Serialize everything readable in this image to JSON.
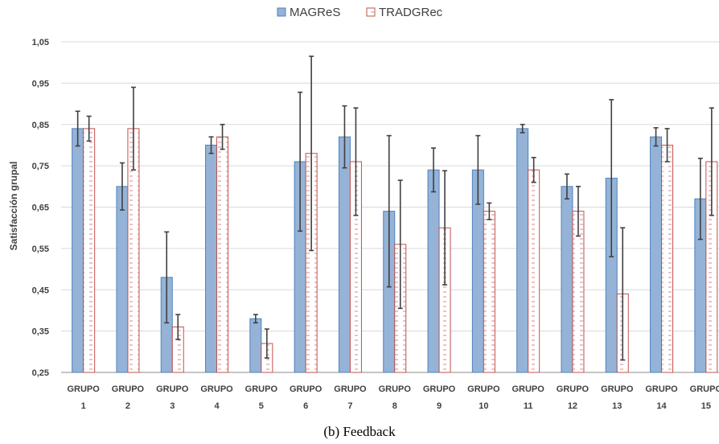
{
  "chart_data": {
    "type": "bar",
    "title": "",
    "xlabel": "",
    "ylabel": "Satisfacción grupal",
    "ylim": [
      0.25,
      1.05
    ],
    "yticks": [
      0.25,
      0.35,
      0.45,
      0.55,
      0.65,
      0.75,
      0.85,
      0.95,
      1.05
    ],
    "ytick_labels": [
      "0,25",
      "0,35",
      "0,45",
      "0,55",
      "0,65",
      "0,75",
      "0,85",
      "0,95",
      "1,05"
    ],
    "grid": true,
    "legend_position": "top-center",
    "categories": [
      [
        "GRUPO",
        "1"
      ],
      [
        "GRUPO",
        "2"
      ],
      [
        "GRUPO",
        "3"
      ],
      [
        "GRUPO",
        "4"
      ],
      [
        "GRUPO",
        "5"
      ],
      [
        "GRUPO",
        "6"
      ],
      [
        "GRUPO",
        "7"
      ],
      [
        "GRUPO",
        "8"
      ],
      [
        "GRUPO",
        "9"
      ],
      [
        "GRUPO",
        "10"
      ],
      [
        "GRUPO",
        "11"
      ],
      [
        "GRUPO",
        "12"
      ],
      [
        "GRUPO",
        "13"
      ],
      [
        "GRUPO",
        "14"
      ],
      [
        "GRUPO",
        "15"
      ]
    ],
    "series": [
      {
        "name": "MAGReS",
        "color": "#95b3d7",
        "edge_color": "#4f81bd",
        "pattern": "solid",
        "values": [
          0.84,
          0.7,
          0.48,
          0.8,
          0.38,
          0.76,
          0.82,
          0.64,
          0.74,
          0.74,
          0.84,
          0.7,
          0.72,
          0.82,
          0.67
        ],
        "error": [
          0.042,
          0.057,
          0.11,
          0.02,
          0.01,
          0.168,
          0.075,
          0.183,
          0.053,
          0.083,
          0.01,
          0.03,
          0.19,
          0.022,
          0.098
        ]
      },
      {
        "name": "TRADGRec",
        "color": "#ffffff",
        "edge_color": "#c0504d",
        "pattern": "dashes",
        "values": [
          0.84,
          0.84,
          0.36,
          0.82,
          0.32,
          0.78,
          0.76,
          0.56,
          0.6,
          0.64,
          0.74,
          0.64,
          0.44,
          0.8,
          0.76
        ],
        "error": [
          0.03,
          0.1,
          0.03,
          0.03,
          0.035,
          0.235,
          0.13,
          0.155,
          0.138,
          0.02,
          0.03,
          0.06,
          0.16,
          0.04,
          0.13
        ]
      }
    ],
    "error_bar_color": "#404040"
  },
  "caption": "(b) Feedback"
}
